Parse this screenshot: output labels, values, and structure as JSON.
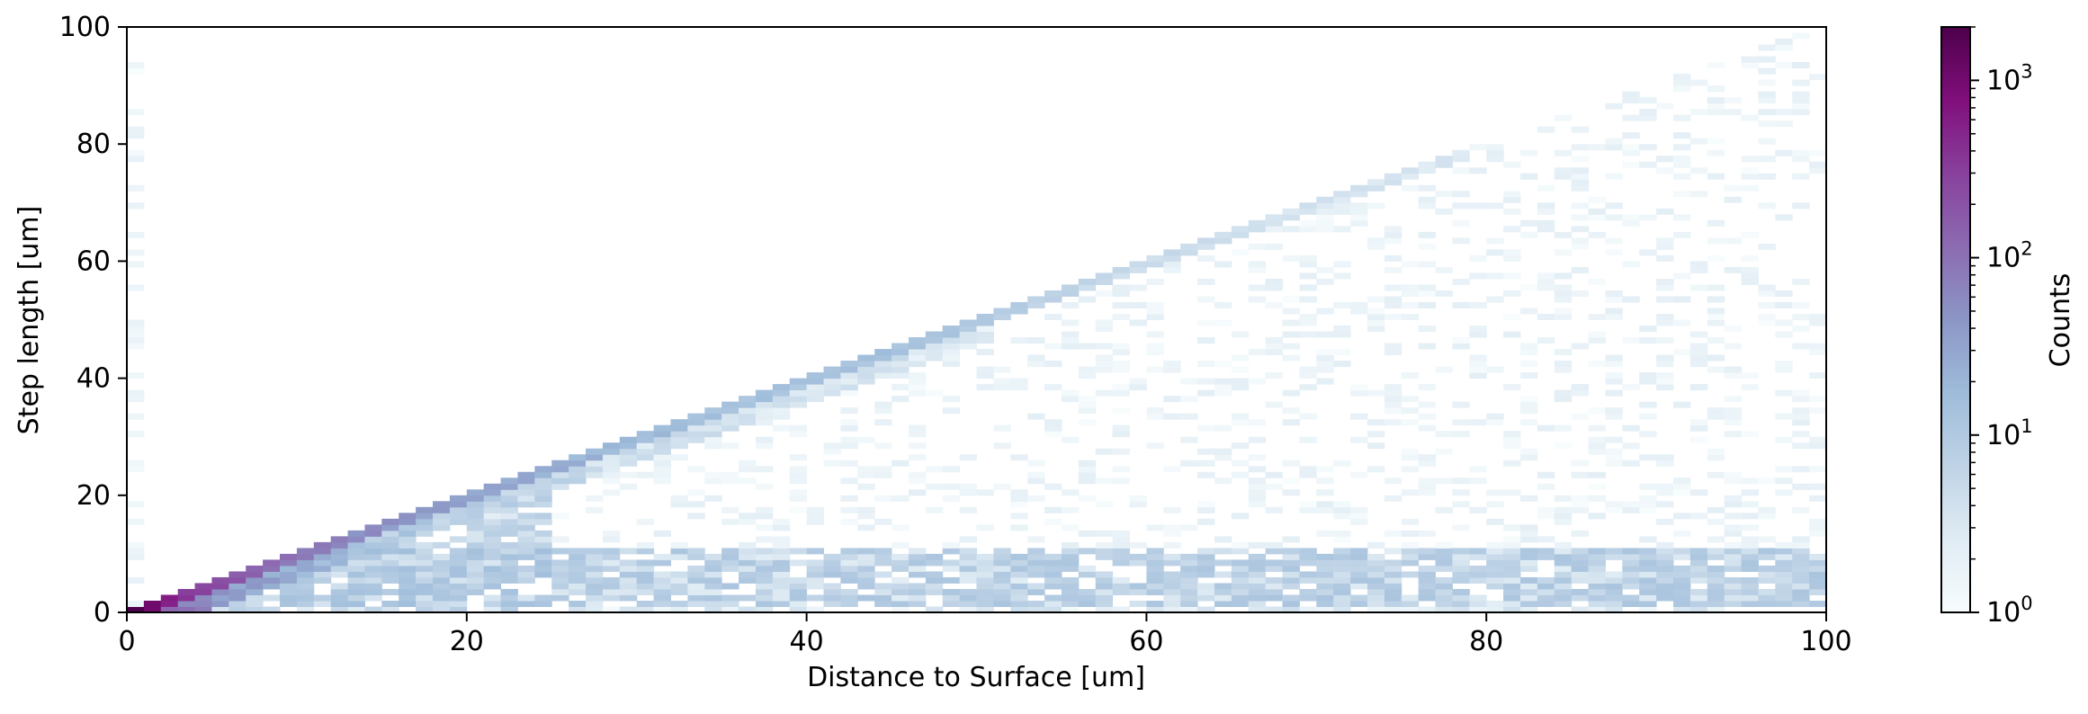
{
  "chart_data": {
    "type": "heatmap",
    "title": "",
    "xlabel": "Distance to Surface [um]",
    "ylabel": "Step length [um]",
    "xlim": [
      0,
      100
    ],
    "ylim": [
      0,
      100
    ],
    "x_ticks": [
      "0",
      "20",
      "40",
      "60",
      "80",
      "100"
    ],
    "y_ticks": [
      "0",
      "20",
      "40",
      "60",
      "80",
      "100"
    ],
    "bin_size": 1,
    "colorbar": {
      "label": "Counts",
      "scale": "log",
      "range": [
        1,
        2000
      ],
      "ticks": [
        {
          "value": 1,
          "base": "10",
          "exp": "0"
        },
        {
          "value": 10,
          "base": "10",
          "exp": "1"
        },
        {
          "value": 100,
          "base": "10",
          "exp": "2"
        },
        {
          "value": 1000,
          "base": "10",
          "exp": "3"
        }
      ],
      "colormap": "BuPu",
      "colors": [
        "#f7fcfd",
        "#e0ecf4",
        "#bfd3e6",
        "#9ebcda",
        "#8c96c6",
        "#8c6bb1",
        "#88419d",
        "#810f7c",
        "#4d004b"
      ]
    },
    "grid": false,
    "description_of_density": "Counts concentrate along the diagonal Step length ≈ Distance to Surface (from ~2000 near origin decaying to ~20 by x=45 and ~3 by x=75); no counts above the diagonal; a band of ~5–20 counts at step length 2–10 um for distances up to 100 um; sparse 1–5 counts fill the region below the diagonal; region above ~75 um step length is nearly empty.",
    "diagonal_ridge": [
      {
        "x": 0,
        "count": 1800
      },
      {
        "x": 2,
        "count": 500
      },
      {
        "x": 5,
        "count": 200
      },
      {
        "x": 10,
        "count": 80
      },
      {
        "x": 15,
        "count": 45
      },
      {
        "x": 20,
        "count": 30
      },
      {
        "x": 30,
        "count": 18
      },
      {
        "x": 40,
        "count": 12
      },
      {
        "x": 45,
        "count": 15
      },
      {
        "x": 55,
        "count": 6
      },
      {
        "x": 65,
        "count": 4
      },
      {
        "x": 78,
        "count": 3
      }
    ],
    "low_band": {
      "y_min": 1,
      "y_max": 10,
      "count_typical": 8
    }
  }
}
